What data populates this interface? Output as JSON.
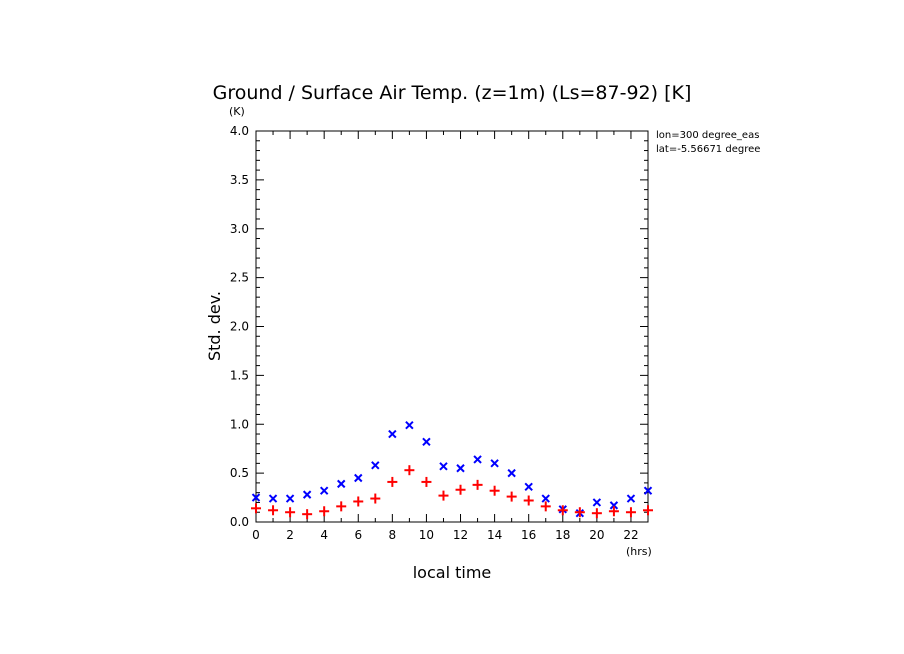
{
  "chart_data": {
    "type": "scatter",
    "title": "Ground / Surface Air Temp. (z=1m) (Ls=87-92) [K]",
    "xlabel": "local time",
    "ylabel": "Std. dev.",
    "x_unit": "(hrs)",
    "y_unit": "(K)",
    "xlim": [
      0,
      23
    ],
    "ylim": [
      0,
      4.0
    ],
    "x_ticks": [
      0,
      2,
      4,
      6,
      8,
      10,
      12,
      14,
      16,
      18,
      20,
      22
    ],
    "y_ticks": [
      "0.0",
      "0.5",
      "1.0",
      "1.5",
      "2.0",
      "2.5",
      "3.0",
      "3.5",
      "4.0"
    ],
    "annotations": [
      "lon=300 degree_eas",
      "lat=-5.56671 degree"
    ],
    "grid": false,
    "x": [
      0,
      1,
      2,
      3,
      4,
      5,
      6,
      7,
      8,
      9,
      10,
      11,
      12,
      13,
      14,
      15,
      16,
      17,
      18,
      19,
      20,
      21,
      22,
      23
    ],
    "series": [
      {
        "marker": "x",
        "color": "#0000ff",
        "values": [
          0.25,
          0.24,
          0.24,
          0.28,
          0.32,
          0.39,
          0.45,
          0.58,
          0.9,
          0.99,
          0.82,
          0.57,
          0.55,
          0.64,
          0.6,
          0.5,
          0.36,
          0.24,
          0.13,
          0.09,
          0.2,
          0.17,
          0.24,
          0.32
        ]
      },
      {
        "marker": "+",
        "color": "#ff0000",
        "values": [
          0.14,
          0.12,
          0.1,
          0.08,
          0.11,
          0.16,
          0.21,
          0.24,
          0.41,
          0.53,
          0.41,
          0.27,
          0.33,
          0.38,
          0.32,
          0.26,
          0.22,
          0.16,
          0.12,
          0.1,
          0.09,
          0.11,
          0.1,
          0.12
        ]
      }
    ]
  }
}
